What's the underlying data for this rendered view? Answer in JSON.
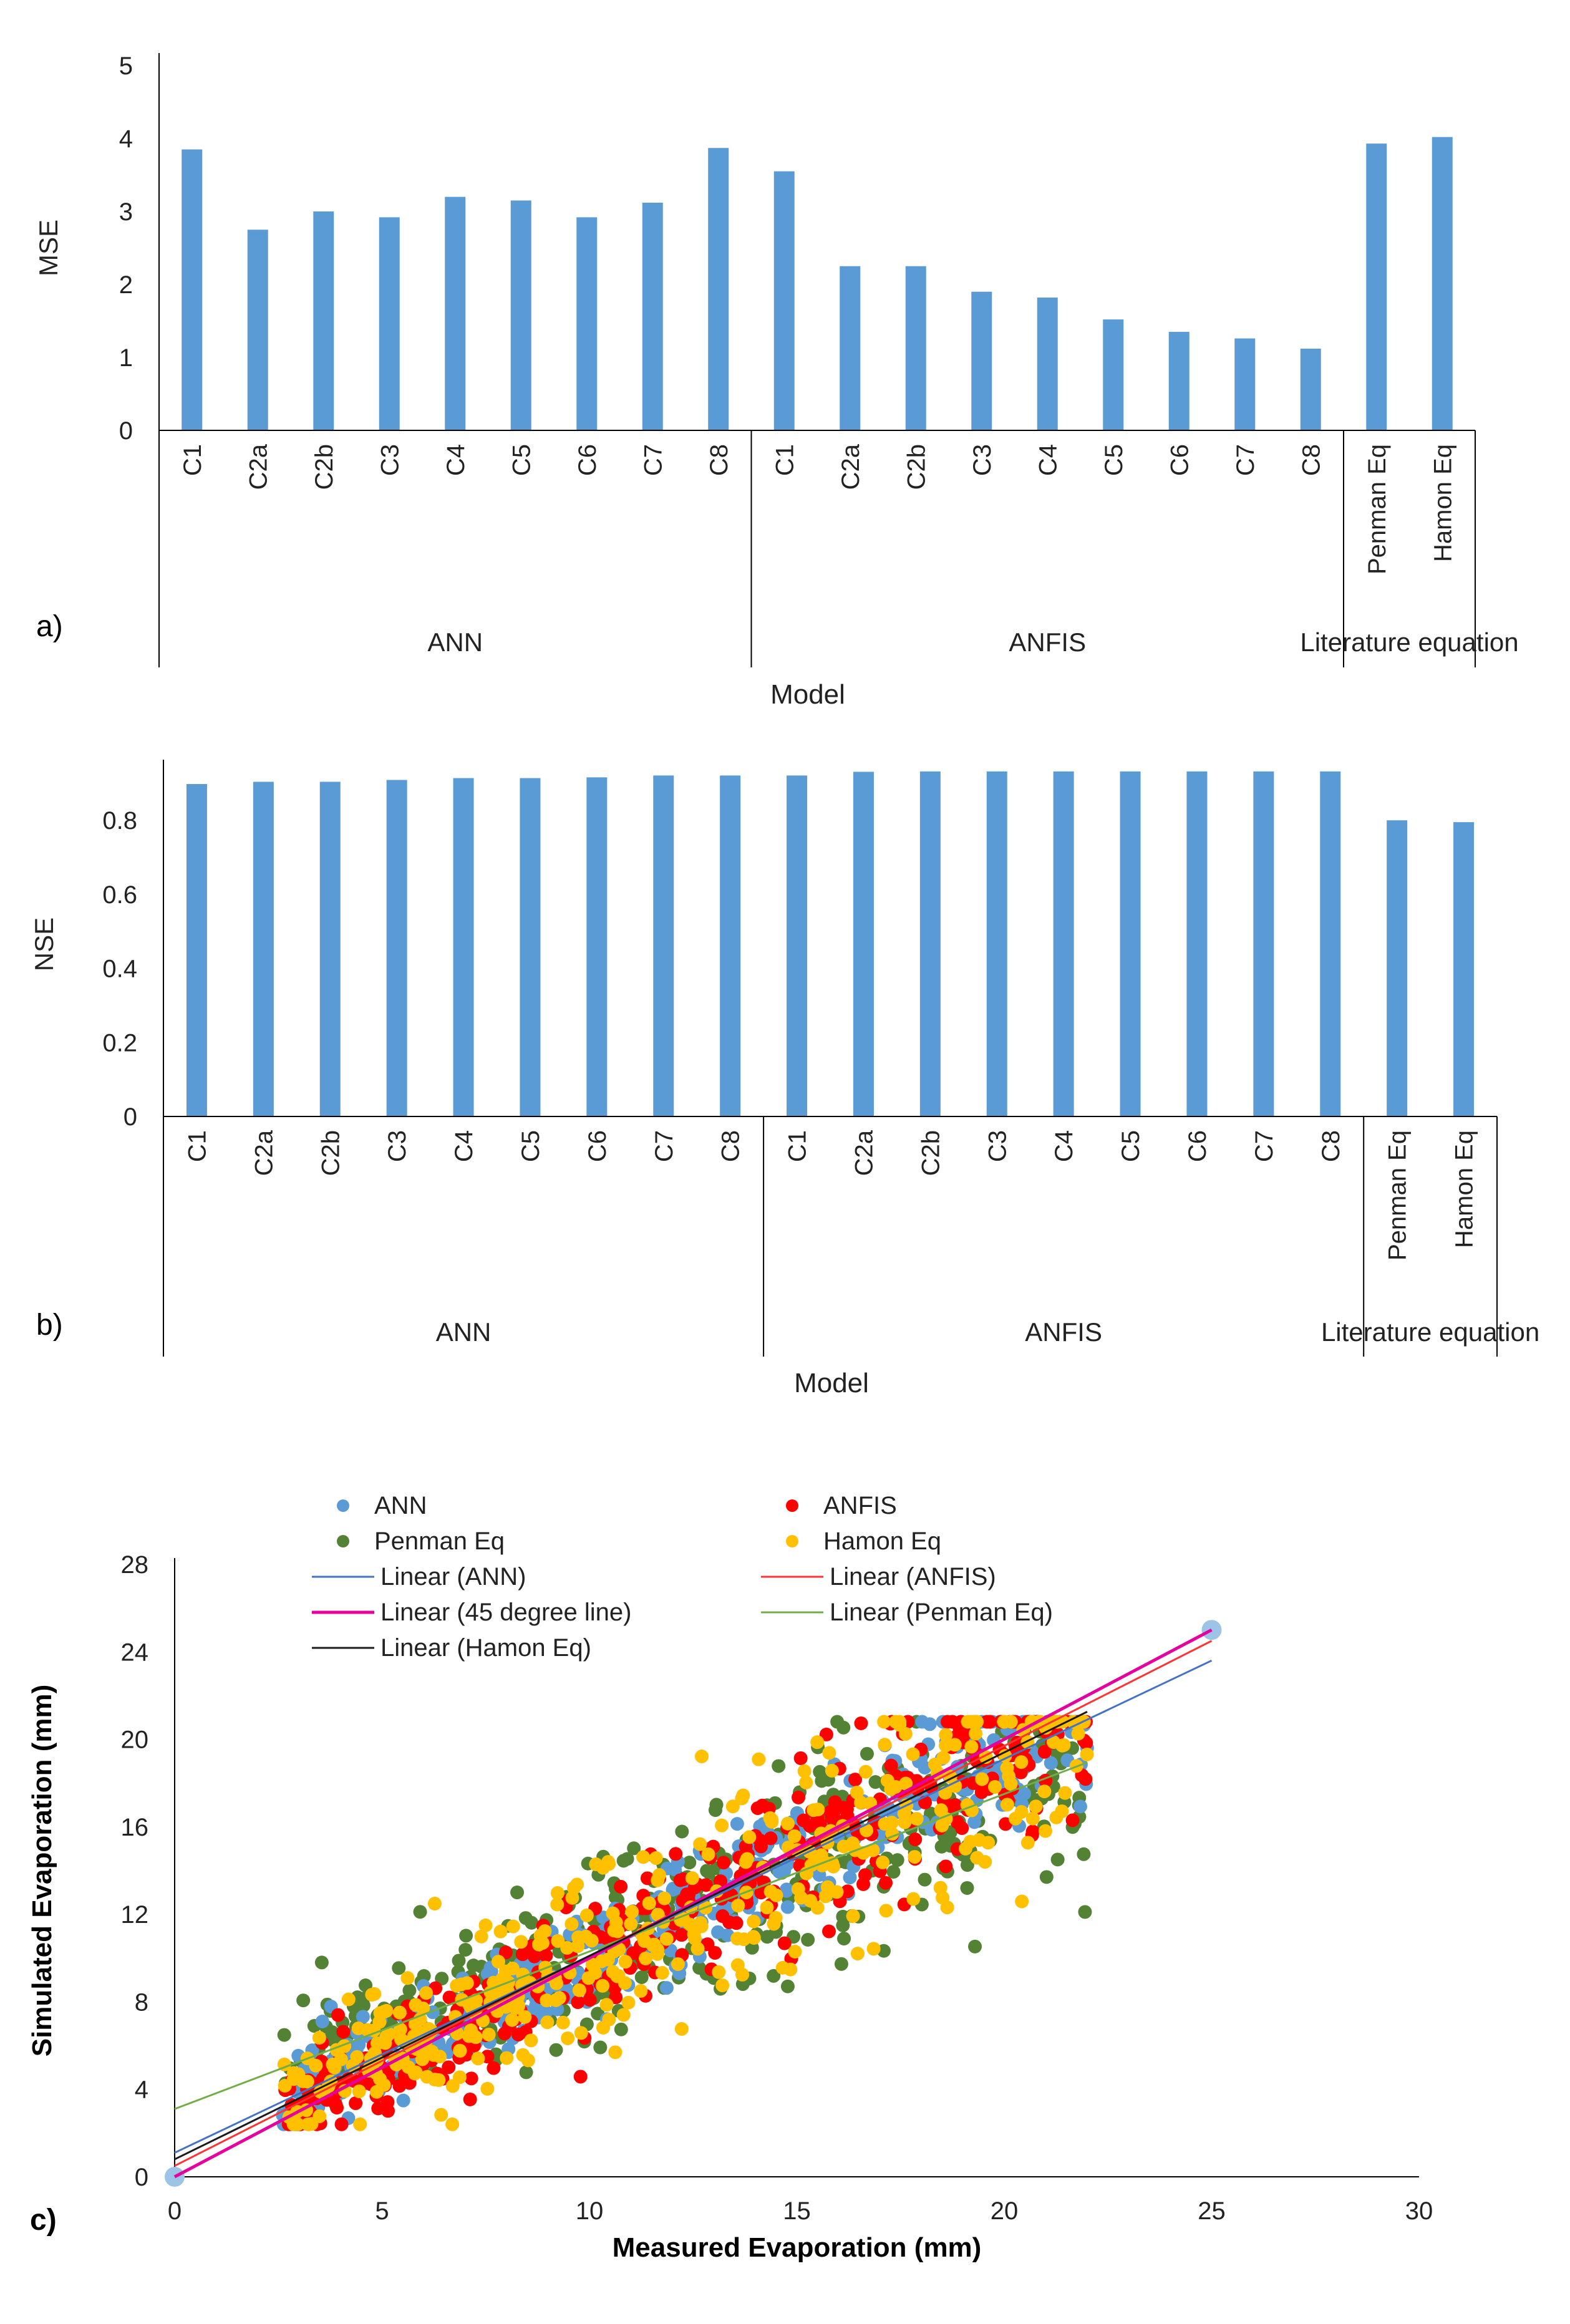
{
  "figure": {
    "panel_labels": [
      "a)",
      "b)",
      "c)"
    ]
  },
  "colors": {
    "bar": "#5b9bd5",
    "axis": "#000000",
    "ann": "#5b9bd5",
    "anfis": "#ff0000",
    "penman": "#548235",
    "hamon": "#ffc000",
    "line_45": "#e6009e",
    "line_hamon": "#1a1a1a"
  },
  "chart_data": [
    {
      "type": "bar",
      "panel": "a)",
      "ylabel": "MSE",
      "xlabel": "Model",
      "ylim": [
        0,
        5
      ],
      "yticks": [
        "0",
        "1",
        "2",
        "3",
        "4",
        "5"
      ],
      "categories": [
        "C1",
        "C2a",
        "C2b",
        "C3",
        "C4",
        "C5",
        "C6",
        "C7",
        "C8",
        "C1",
        "C2a",
        "C2b",
        "C3",
        "C4",
        "C5",
        "C6",
        "C7",
        "C8",
        "Penman Eq",
        "Hamon Eq"
      ],
      "groups": [
        {
          "name": "ANN",
          "count": 9
        },
        {
          "name": "ANFIS",
          "count": 9
        },
        {
          "name": "Literature equation",
          "count": 2
        }
      ],
      "values": [
        3.85,
        2.75,
        3.0,
        2.92,
        3.2,
        3.15,
        2.92,
        3.12,
        3.87,
        3.55,
        2.25,
        2.25,
        1.9,
        1.82,
        1.52,
        1.35,
        1.26,
        1.12,
        3.93,
        4.02
      ]
    },
    {
      "type": "bar",
      "panel": "b)",
      "ylabel": "NSE",
      "xlabel": "Model",
      "ylim": [
        0,
        0.93
      ],
      "yticks": [
        "0",
        "0.2",
        "0.4",
        "0.6",
        "0.8"
      ],
      "categories": [
        "C1",
        "C2a",
        "C2b",
        "C3",
        "C4",
        "C5",
        "C6",
        "C7",
        "C8",
        "C1",
        "C2a",
        "C2b",
        "C3",
        "C4",
        "C5",
        "C6",
        "C7",
        "C8",
        "Penman Eq",
        "Hamon Eq"
      ],
      "groups": [
        {
          "name": "ANN",
          "count": 9
        },
        {
          "name": "ANFIS",
          "count": 9
        },
        {
          "name": "Literature equation",
          "count": 2
        }
      ],
      "values": [
        0.898,
        0.904,
        0.904,
        0.909,
        0.914,
        0.914,
        0.916,
        0.921,
        0.921,
        0.921,
        0.931,
        0.932,
        0.932,
        0.932,
        0.932,
        0.932,
        0.932,
        0.932,
        0.8,
        0.795
      ]
    },
    {
      "type": "scatter",
      "panel": "c)",
      "xlabel": "Measured Evaporation (mm)",
      "ylabel": "Simulated Evaporation (mm)",
      "xlim": [
        0,
        30
      ],
      "ylim": [
        0,
        28
      ],
      "xticks": [
        "0",
        "5",
        "10",
        "15",
        "20",
        "25",
        "30"
      ],
      "yticks": [
        "0",
        "4",
        "8",
        "12",
        "16",
        "20",
        "24",
        "28"
      ],
      "series": [
        {
          "name": "ANN",
          "kind": "points",
          "color": "#5b9bd5",
          "spread": 1.2,
          "seed": 11
        },
        {
          "name": "ANFIS",
          "kind": "points",
          "color": "#ff0000",
          "spread": 1.4,
          "seed": 23
        },
        {
          "name": "Penman Eq",
          "kind": "points",
          "color": "#548235",
          "spread": 1.8,
          "seed": 37
        },
        {
          "name": "Hamon Eq",
          "kind": "points",
          "color": "#ffc000",
          "spread": 1.9,
          "seed": 51
        },
        {
          "name": "Linear (ANN)",
          "kind": "line",
          "color": "#4472c4",
          "slope": 0.9,
          "intercept": 1.1
        },
        {
          "name": "Linear (ANFIS)",
          "kind": "line",
          "color": "#ff3333",
          "slope": 0.96,
          "intercept": 0.5
        },
        {
          "name": "Linear (45 degree line)",
          "kind": "line",
          "color": "#e6009e",
          "slope": 1.0,
          "intercept": 0.0
        },
        {
          "name": "Linear (Penman Eq)",
          "kind": "line",
          "color": "#70ad47",
          "slope": 0.72,
          "intercept": 3.1
        },
        {
          "name": "Linear (Hamon Eq)",
          "kind": "line",
          "color": "#1a1a1a",
          "slope": 0.93,
          "intercept": 0.8
        }
      ],
      "endpoints": [
        [
          0,
          0
        ],
        [
          25,
          25
        ]
      ],
      "x_range_data": [
        2.6,
        22
      ]
    }
  ]
}
